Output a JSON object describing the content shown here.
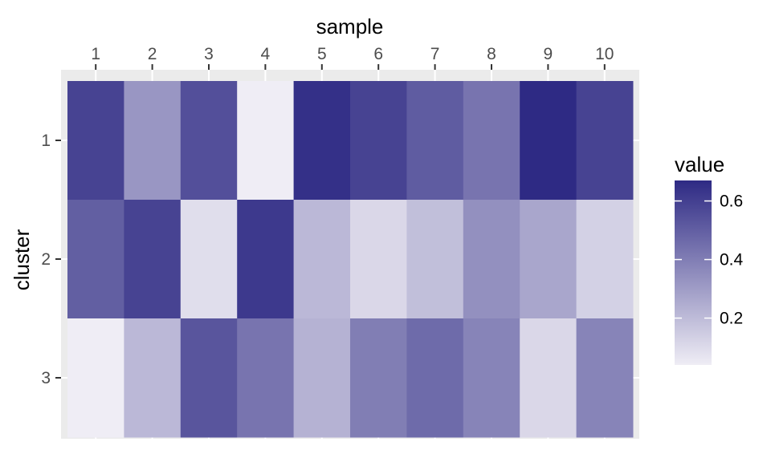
{
  "chart_data": {
    "type": "heatmap",
    "title": "",
    "xlabel": "sample",
    "ylabel": "cluster",
    "x_position": "top",
    "x_categories": [
      "1",
      "2",
      "3",
      "4",
      "5",
      "6",
      "7",
      "8",
      "9",
      "10"
    ],
    "y_categories": [
      "1",
      "2",
      "3"
    ],
    "values": [
      [
        0.59,
        0.32,
        0.55,
        0.04,
        0.65,
        0.59,
        0.51,
        0.43,
        0.67,
        0.59
      ],
      [
        0.5,
        0.59,
        0.09,
        0.62,
        0.21,
        0.11,
        0.19,
        0.34,
        0.27,
        0.13
      ],
      [
        0.04,
        0.21,
        0.53,
        0.43,
        0.23,
        0.4,
        0.46,
        0.38,
        0.11,
        0.38
      ]
    ],
    "value_range": [
      0.04,
      0.67
    ],
    "colors": {
      "low": "#efedf5",
      "high": "#2e2a84"
    },
    "legend": {
      "title": "value",
      "ticks": [
        0.2,
        0.4,
        0.6
      ],
      "tick_labels": [
        "0.2",
        "0.4",
        "0.6"
      ],
      "position": "right"
    },
    "panel_background": "#ebebeb",
    "grid": true
  }
}
